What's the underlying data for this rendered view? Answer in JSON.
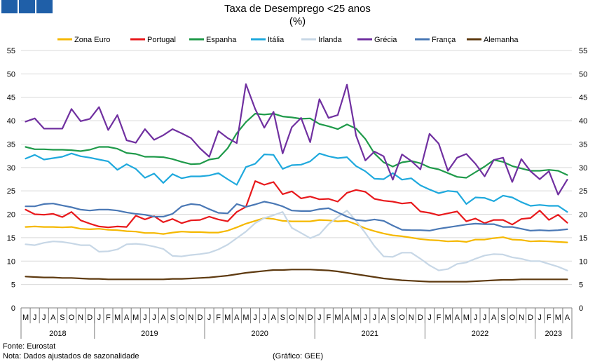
{
  "title": "Taxa de Desemprego <25 anos",
  "subtitle": "(%)",
  "footer": {
    "source": "Fonte: Eurostat",
    "note": "Nota: Dados ajustados de sazonalidade",
    "credit": "(Gráfico: GEE)"
  },
  "colors": {
    "brand": "#1f5fa8"
  },
  "chart_data": {
    "type": "line",
    "ylim": [
      0,
      55
    ],
    "yticks": [
      0,
      5,
      10,
      15,
      20,
      25,
      30,
      35,
      40,
      45,
      50,
      55
    ],
    "legend_position": "top",
    "grid": true,
    "x": [
      "M",
      "J",
      "J",
      "A",
      "S",
      "O",
      "N",
      "D",
      "J",
      "F",
      "M",
      "A",
      "M",
      "J",
      "J",
      "A",
      "S",
      "O",
      "N",
      "D",
      "J",
      "F",
      "M",
      "A",
      "M",
      "J",
      "J",
      "A",
      "S",
      "O",
      "N",
      "D",
      "J",
      "F",
      "M",
      "A",
      "M",
      "J",
      "J",
      "A",
      "S",
      "O",
      "N",
      "D",
      "J",
      "F",
      "M",
      "A",
      "M",
      "J",
      "J",
      "A",
      "S",
      "O",
      "N",
      "D",
      "J",
      "F",
      "M",
      "A"
    ],
    "years": [
      {
        "label": "2018",
        "start": 0,
        "end": 8
      },
      {
        "label": "2019",
        "start": 8,
        "end": 20
      },
      {
        "label": "2020",
        "start": 20,
        "end": 32
      },
      {
        "label": "2021",
        "start": 32,
        "end": 44
      },
      {
        "label": "2022",
        "start": 44,
        "end": 56
      },
      {
        "label": "2023",
        "start": 56,
        "end": 60
      }
    ],
    "series": [
      {
        "name": "Zona Euro",
        "color": "#f5b800",
        "values": [
          17.3,
          17.4,
          17.3,
          17.3,
          17.2,
          17.3,
          16.9,
          16.8,
          16.9,
          16.7,
          16.6,
          16.4,
          16.3,
          16.0,
          16.0,
          15.8,
          16.1,
          16.3,
          16.2,
          16.2,
          16.1,
          16.1,
          16.5,
          17.2,
          18.0,
          18.6,
          19.2,
          19.0,
          18.6,
          18.5,
          18.5,
          18.5,
          18.8,
          18.7,
          18.5,
          18.6,
          17.9,
          17.0,
          16.4,
          15.9,
          15.5,
          15.3,
          15.0,
          14.7,
          14.5,
          14.4,
          14.2,
          14.3,
          14.1,
          14.6,
          14.6,
          14.9,
          15.1,
          14.6,
          14.5,
          14.2,
          14.3,
          14.2,
          14.1,
          14.0
        ]
      },
      {
        "name": "Portugal",
        "color": "#e8191c",
        "values": [
          21.0,
          20.0,
          19.9,
          20.1,
          19.4,
          20.5,
          18.7,
          18.0,
          17.4,
          17.2,
          17.4,
          17.3,
          19.7,
          18.9,
          19.6,
          18.3,
          19.0,
          18.1,
          18.7,
          18.8,
          19.5,
          18.9,
          18.5,
          20.5,
          21.6,
          27.1,
          26.3,
          26.9,
          24.3,
          24.9,
          23.4,
          23.8,
          23.2,
          23.3,
          22.7,
          24.6,
          25.2,
          24.8,
          23.3,
          22.9,
          22.7,
          22.3,
          22.5,
          20.6,
          20.3,
          19.8,
          20.2,
          20.6,
          18.5,
          19.1,
          18.1,
          18.8,
          18.8,
          17.8,
          19.0,
          19.2,
          20.8,
          18.8,
          19.9,
          18.2
        ]
      },
      {
        "name": "Espanha",
        "color": "#1f9a4a",
        "values": [
          34.4,
          33.9,
          33.9,
          33.8,
          33.8,
          33.7,
          33.5,
          33.8,
          34.4,
          34.4,
          34.0,
          33.1,
          32.9,
          32.3,
          32.3,
          32.2,
          31.8,
          31.2,
          30.7,
          30.8,
          31.7,
          32.0,
          34.1,
          37.3,
          39.7,
          41.5,
          41.3,
          41.5,
          40.9,
          40.7,
          40.4,
          40.5,
          39.3,
          38.8,
          38.2,
          39.2,
          38.3,
          36.1,
          33.0,
          31.1,
          30.2,
          31.1,
          31.4,
          30.9,
          30.0,
          29.6,
          28.8,
          28.0,
          27.8,
          29.0,
          30.2,
          31.6,
          31.2,
          30.3,
          29.8,
          29.3,
          29.3,
          29.5,
          29.3,
          28.4
        ]
      },
      {
        "name": "Itália",
        "color": "#1fa9dd",
        "values": [
          31.9,
          32.7,
          31.7,
          32.0,
          32.3,
          33.0,
          32.4,
          32.1,
          31.7,
          31.3,
          29.5,
          30.7,
          29.7,
          27.8,
          28.7,
          26.7,
          28.6,
          27.7,
          28.1,
          28.1,
          28.3,
          28.8,
          27.5,
          26.3,
          30.1,
          30.8,
          32.8,
          32.7,
          29.7,
          30.5,
          30.6,
          31.3,
          33.0,
          32.4,
          32.0,
          32.2,
          30.3,
          29.2,
          27.6,
          27.5,
          28.8,
          27.4,
          27.7,
          26.2,
          25.3,
          24.5,
          25.0,
          24.8,
          22.2,
          23.6,
          23.5,
          22.8,
          24.0,
          23.6,
          22.6,
          21.8,
          22.0,
          21.8,
          21.8,
          20.5
        ]
      },
      {
        "name": "Irlanda",
        "color": "#c7d7e6",
        "values": [
          13.6,
          13.4,
          13.9,
          14.2,
          14.1,
          13.8,
          13.4,
          13.4,
          12.0,
          12.1,
          12.5,
          13.6,
          13.7,
          13.5,
          13.1,
          12.6,
          11.1,
          11.0,
          11.3,
          11.5,
          11.8,
          12.5,
          13.5,
          14.9,
          16.3,
          18.1,
          19.2,
          19.8,
          20.5,
          17.1,
          16.0,
          14.9,
          15.7,
          17.9,
          19.4,
          20.8,
          18.6,
          16.0,
          13.2,
          11.0,
          10.9,
          11.8,
          11.8,
          10.5,
          9.1,
          8.0,
          8.3,
          9.4,
          9.7,
          10.5,
          11.2,
          11.5,
          11.4,
          10.8,
          10.5,
          10.0,
          10.0,
          9.4,
          8.8,
          8.0
        ]
      },
      {
        "name": "Grécia",
        "color": "#7030a0",
        "values": [
          39.8,
          40.5,
          38.3,
          38.3,
          38.3,
          42.5,
          39.9,
          40.4,
          42.9,
          38.0,
          41.2,
          35.8,
          35.3,
          38.2,
          35.9,
          36.9,
          38.2,
          37.3,
          36.3,
          34.1,
          32.3,
          37.8,
          36.3,
          35.2,
          47.8,
          42.5,
          38.5,
          41.9,
          33.0,
          38.6,
          40.6,
          35.4,
          44.6,
          40.6,
          41.2,
          47.7,
          36.8,
          31.5,
          33.4,
          32.4,
          27.4,
          32.8,
          31.4,
          29.6,
          37.2,
          35.1,
          29.3,
          32.1,
          32.9,
          30.8,
          28.1,
          31.6,
          32.1,
          26.9,
          31.8,
          29.2,
          27.5,
          29.2,
          24.2,
          27.4
        ]
      },
      {
        "name": "França",
        "color": "#4a78b5",
        "values": [
          21.7,
          21.7,
          22.2,
          22.3,
          21.9,
          21.5,
          21.0,
          20.8,
          21.0,
          21.0,
          20.8,
          20.4,
          20.1,
          19.9,
          19.5,
          19.5,
          20.1,
          21.7,
          22.2,
          22.0,
          21.1,
          20.3,
          20.2,
          22.2,
          21.6,
          22.1,
          22.7,
          22.3,
          21.7,
          20.8,
          20.7,
          20.7,
          21.1,
          21.3,
          20.4,
          19.5,
          18.8,
          18.6,
          18.9,
          18.6,
          17.6,
          16.7,
          16.6,
          16.6,
          16.5,
          16.9,
          17.2,
          17.5,
          17.8,
          18.0,
          17.9,
          17.9,
          17.3,
          17.3,
          16.9,
          16.5,
          16.6,
          16.5,
          16.6,
          16.8
        ]
      },
      {
        "name": "Alemanha",
        "color": "#5e3a10",
        "values": [
          6.7,
          6.6,
          6.5,
          6.5,
          6.4,
          6.4,
          6.3,
          6.2,
          6.2,
          6.1,
          6.1,
          6.1,
          6.1,
          6.1,
          6.1,
          6.1,
          6.2,
          6.2,
          6.3,
          6.4,
          6.5,
          6.7,
          6.9,
          7.2,
          7.5,
          7.7,
          7.9,
          8.1,
          8.1,
          8.2,
          8.2,
          8.2,
          8.1,
          8.0,
          7.8,
          7.5,
          7.2,
          6.9,
          6.6,
          6.3,
          6.1,
          5.9,
          5.8,
          5.7,
          5.6,
          5.6,
          5.6,
          5.6,
          5.6,
          5.7,
          5.8,
          5.9,
          6.0,
          6.0,
          6.1,
          6.1,
          6.1,
          6.1,
          6.1,
          6.1
        ]
      }
    ]
  }
}
